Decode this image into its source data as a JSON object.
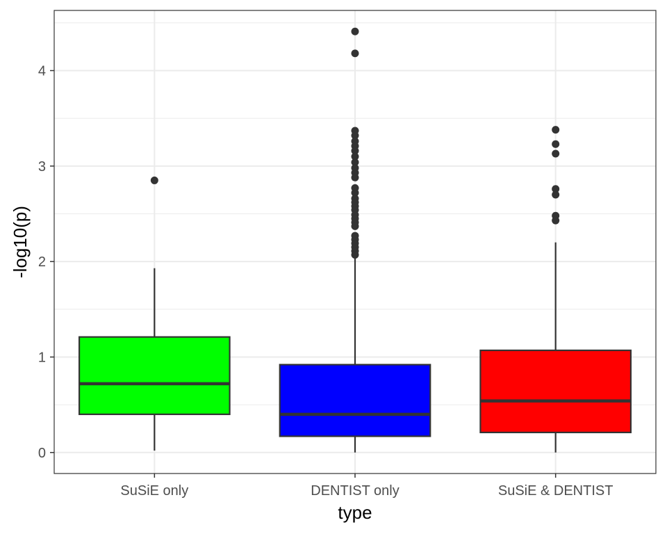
{
  "chart_data": {
    "type": "boxplot",
    "xlabel": "type",
    "ylabel": "-log10(p)",
    "ylim": [
      -0.22,
      4.63
    ],
    "yticks": [
      0,
      1,
      2,
      3,
      4
    ],
    "grid": true,
    "categories": [
      "SuSiE only",
      "DENTIST only",
      "SuSiE & DENTIST"
    ],
    "colors": [
      "#00ff00",
      "#0000ff",
      "#ff0000"
    ],
    "boxes": [
      {
        "name": "SuSiE only",
        "whisker_low": 0.02,
        "q1": 0.4,
        "median": 0.72,
        "q3": 1.21,
        "whisker_high": 1.93,
        "outliers": [
          2.85
        ]
      },
      {
        "name": "DENTIST only",
        "whisker_low": 0.0,
        "q1": 0.17,
        "median": 0.4,
        "q3": 0.92,
        "whisker_high": 2.06,
        "outliers": [
          4.41,
          4.18,
          3.37,
          3.32,
          3.26,
          3.21,
          3.16,
          3.1,
          3.04,
          2.98,
          2.93,
          2.88,
          2.77,
          2.72,
          2.66,
          2.62,
          2.58,
          2.54,
          2.49,
          2.45,
          2.41,
          2.37,
          2.27,
          2.23,
          2.19,
          2.15,
          2.11,
          2.07
        ]
      },
      {
        "name": "SuSiE & DENTIST",
        "whisker_low": 0.0,
        "q1": 0.21,
        "median": 0.54,
        "q3": 1.07,
        "whisker_high": 2.2,
        "outliers": [
          3.38,
          3.23,
          3.13,
          2.76,
          2.7,
          2.48,
          2.43
        ]
      }
    ]
  }
}
